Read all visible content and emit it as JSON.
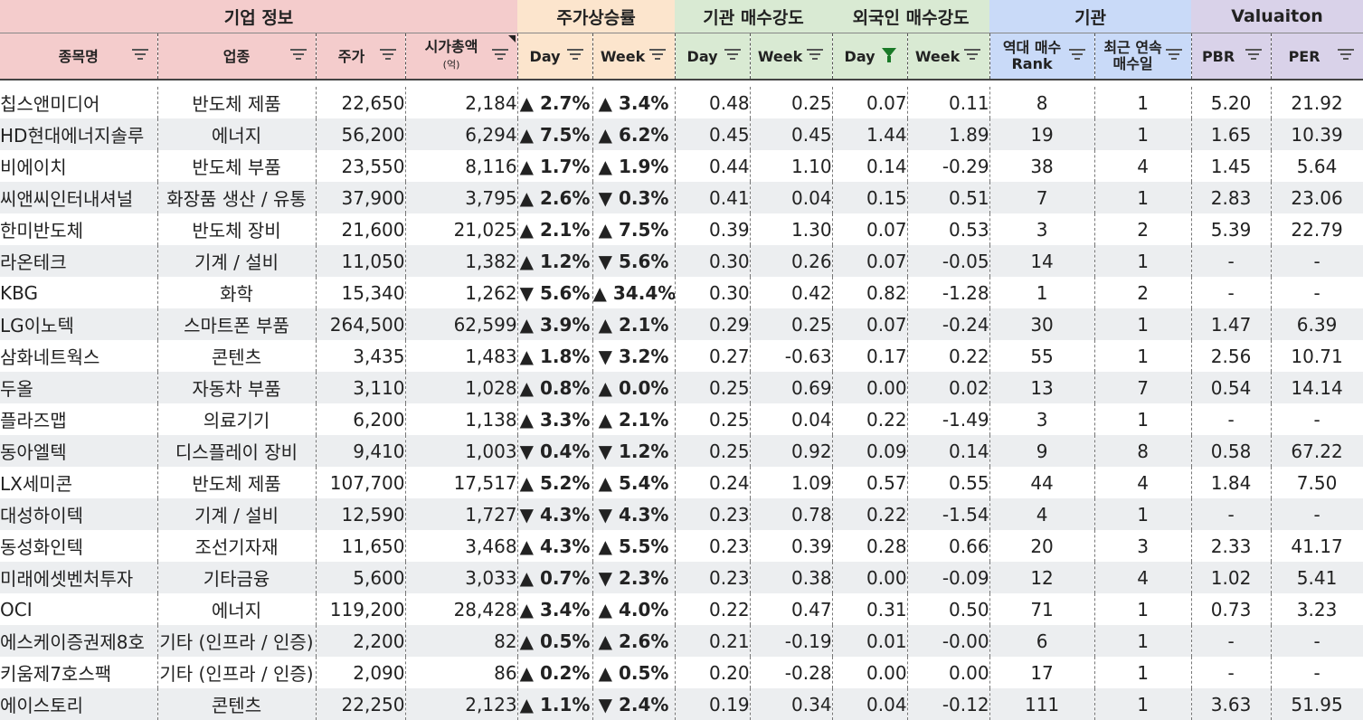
{
  "groups": [
    "기업 정보",
    "주가상승률",
    "기관 매수강도",
    "외국인 매수강도",
    "기관",
    "Valuaiton"
  ],
  "colors": {
    "pink": "#f4cccc",
    "orange": "#fce5cd",
    "green": "#d9ead3",
    "blue": "#c9daf8",
    "purple": "#d9d2e9",
    "up": "#e00000",
    "down": "#0000e0"
  },
  "headers": {
    "name": "종목명",
    "sector": "업종",
    "price": "주가",
    "mcap": "시가총액",
    "mcap_unit": "(억)",
    "p_day": "Day",
    "p_week": "Week",
    "i_day": "Day",
    "i_week": "Week",
    "f_day": "Day",
    "f_week": "Week",
    "rank_l1": "역대 매수",
    "rank_l2": "Rank",
    "streak_l1": "최근 연속",
    "streak_l2": "매수일",
    "pbr": "PBR",
    "per": "PER"
  },
  "rows": [
    {
      "name": "칩스앤미디어",
      "sector": "반도체 제품",
      "price": "22,650",
      "mcap": "2,184",
      "pd": "▲ 2.7%",
      "pdu": true,
      "pw": "▲ 3.4%",
      "pwu": true,
      "id": "0.48",
      "iw": "0.25",
      "fd": "0.07",
      "fw": "0.11",
      "rank": "8",
      "streak": "1",
      "pbr": "5.20",
      "per": "21.92"
    },
    {
      "name": "HD현대에너지솔루",
      "sector": "에너지",
      "price": "56,200",
      "mcap": "6,294",
      "pd": "▲ 7.5%",
      "pdu": true,
      "pw": "▲ 6.2%",
      "pwu": true,
      "id": "0.45",
      "iw": "0.45",
      "fd": "1.44",
      "fw": "1.89",
      "rank": "19",
      "streak": "1",
      "pbr": "1.65",
      "per": "10.39"
    },
    {
      "name": "비에이치",
      "sector": "반도체 부품",
      "price": "23,550",
      "mcap": "8,116",
      "pd": "▲ 1.7%",
      "pdu": true,
      "pw": "▲ 1.9%",
      "pwu": true,
      "id": "0.44",
      "iw": "1.10",
      "fd": "0.14",
      "fw": "-0.29",
      "rank": "38",
      "streak": "4",
      "pbr": "1.45",
      "per": "5.64"
    },
    {
      "name": "씨앤씨인터내셔널",
      "sector": "화장품 생산 / 유통",
      "price": "37,900",
      "mcap": "3,795",
      "pd": "▲ 2.6%",
      "pdu": true,
      "pw": "▼ 0.3%",
      "pwu": false,
      "id": "0.41",
      "iw": "0.04",
      "fd": "0.15",
      "fw": "0.51",
      "rank": "7",
      "streak": "1",
      "pbr": "2.83",
      "per": "23.06"
    },
    {
      "name": "한미반도체",
      "sector": "반도체 장비",
      "price": "21,600",
      "mcap": "21,025",
      "pd": "▲ 2.1%",
      "pdu": true,
      "pw": "▲ 7.5%",
      "pwu": true,
      "id": "0.39",
      "iw": "1.30",
      "fd": "0.07",
      "fw": "0.53",
      "rank": "3",
      "streak": "2",
      "pbr": "5.39",
      "per": "22.79"
    },
    {
      "name": "라온테크",
      "sector": "기계 / 설비",
      "price": "11,050",
      "mcap": "1,382",
      "pd": "▲ 1.2%",
      "pdu": true,
      "pw": "▼ 5.6%",
      "pwu": false,
      "id": "0.30",
      "iw": "0.26",
      "fd": "0.07",
      "fw": "-0.05",
      "rank": "14",
      "streak": "1",
      "pbr": "-",
      "per": "-"
    },
    {
      "name": "KBG",
      "sector": "화학",
      "price": "15,340",
      "mcap": "1,262",
      "pd": "▼ 5.6%",
      "pdu": false,
      "pw": "▲ 34.4%",
      "pwu": true,
      "id": "0.30",
      "iw": "0.42",
      "fd": "0.82",
      "fw": "-1.28",
      "rank": "1",
      "streak": "2",
      "pbr": "-",
      "per": "-"
    },
    {
      "name": "LG이노텍",
      "sector": "스마트폰 부품",
      "price": "264,500",
      "mcap": "62,599",
      "pd": "▲ 3.9%",
      "pdu": true,
      "pw": "▲ 2.1%",
      "pwu": true,
      "id": "0.29",
      "iw": "0.25",
      "fd": "0.07",
      "fw": "-0.24",
      "rank": "30",
      "streak": "1",
      "pbr": "1.47",
      "per": "6.39"
    },
    {
      "name": "삼화네트웍스",
      "sector": "콘텐츠",
      "price": "3,435",
      "mcap": "1,483",
      "pd": "▲ 1.8%",
      "pdu": true,
      "pw": "▼ 3.2%",
      "pwu": false,
      "id": "0.27",
      "iw": "-0.63",
      "fd": "0.17",
      "fw": "0.22",
      "rank": "55",
      "streak": "1",
      "pbr": "2.56",
      "per": "10.71"
    },
    {
      "name": "두올",
      "sector": "자동차 부품",
      "price": "3,110",
      "mcap": "1,028",
      "pd": "▲ 0.8%",
      "pdu": true,
      "pw": "▲ 0.0%",
      "pwu": true,
      "id": "0.25",
      "iw": "0.69",
      "fd": "0.00",
      "fw": "0.02",
      "rank": "13",
      "streak": "7",
      "pbr": "0.54",
      "per": "14.14"
    },
    {
      "name": "플라즈맵",
      "sector": "의료기기",
      "price": "6,200",
      "mcap": "1,138",
      "pd": "▲ 3.3%",
      "pdu": true,
      "pw": "▲ 2.1%",
      "pwu": true,
      "id": "0.25",
      "iw": "0.04",
      "fd": "0.22",
      "fw": "-1.49",
      "rank": "3",
      "streak": "1",
      "pbr": "-",
      "per": "-"
    },
    {
      "name": "동아엘텍",
      "sector": "디스플레이 장비",
      "price": "9,410",
      "mcap": "1,003",
      "pd": "▼ 0.4%",
      "pdu": false,
      "pw": "▼ 1.2%",
      "pwu": false,
      "id": "0.25",
      "iw": "0.92",
      "fd": "0.09",
      "fw": "0.14",
      "rank": "9",
      "streak": "8",
      "pbr": "0.58",
      "per": "67.22"
    },
    {
      "name": "LX세미콘",
      "sector": "반도체 제품",
      "price": "107,700",
      "mcap": "17,517",
      "pd": "▲ 5.2%",
      "pdu": true,
      "pw": "▲ 5.4%",
      "pwu": true,
      "id": "0.24",
      "iw": "1.09",
      "fd": "0.57",
      "fw": "0.55",
      "rank": "44",
      "streak": "4",
      "pbr": "1.84",
      "per": "7.50"
    },
    {
      "name": "대성하이텍",
      "sector": "기계 / 설비",
      "price": "12,590",
      "mcap": "1,727",
      "pd": "▼ 4.3%",
      "pdu": false,
      "pw": "▼ 4.3%",
      "pwu": false,
      "id": "0.23",
      "iw": "0.78",
      "fd": "0.22",
      "fw": "-1.54",
      "rank": "4",
      "streak": "1",
      "pbr": "-",
      "per": "-"
    },
    {
      "name": "동성화인텍",
      "sector": "조선기자재",
      "price": "11,650",
      "mcap": "3,468",
      "pd": "▲ 4.3%",
      "pdu": true,
      "pw": "▲ 5.5%",
      "pwu": true,
      "id": "0.23",
      "iw": "0.39",
      "fd": "0.28",
      "fw": "0.66",
      "rank": "20",
      "streak": "3",
      "pbr": "2.33",
      "per": "41.17"
    },
    {
      "name": "미래에셋벤처투자",
      "sector": "기타금융",
      "price": "5,600",
      "mcap": "3,033",
      "pd": "▲ 0.7%",
      "pdu": true,
      "pw": "▼ 2.3%",
      "pwu": false,
      "id": "0.23",
      "iw": "0.38",
      "fd": "0.00",
      "fw": "-0.09",
      "rank": "12",
      "streak": "4",
      "pbr": "1.02",
      "per": "5.41"
    },
    {
      "name": "OCI",
      "sector": "에너지",
      "price": "119,200",
      "mcap": "28,428",
      "pd": "▲ 3.4%",
      "pdu": true,
      "pw": "▲ 4.0%",
      "pwu": true,
      "id": "0.22",
      "iw": "0.47",
      "fd": "0.31",
      "fw": "0.50",
      "rank": "71",
      "streak": "1",
      "pbr": "0.73",
      "per": "3.23"
    },
    {
      "name": "에스케이증권제8호",
      "sector": "기타 (인프라 / 인증)",
      "price": "2,200",
      "mcap": "82",
      "pd": "▲ 0.5%",
      "pdu": true,
      "pw": "▲ 2.6%",
      "pwu": true,
      "id": "0.21",
      "iw": "-0.19",
      "fd": "0.01",
      "fw": "-0.00",
      "rank": "6",
      "streak": "1",
      "pbr": "-",
      "per": "-"
    },
    {
      "name": "키움제7호스팩",
      "sector": "기타 (인프라 / 인증)",
      "price": "2,090",
      "mcap": "86",
      "pd": "▲ 0.2%",
      "pdu": true,
      "pw": "▲ 0.5%",
      "pwu": true,
      "id": "0.20",
      "iw": "-0.28",
      "fd": "0.00",
      "fw": "0.00",
      "rank": "17",
      "streak": "1",
      "pbr": "-",
      "per": "-"
    },
    {
      "name": "에이스토리",
      "sector": "콘텐츠",
      "price": "22,250",
      "mcap": "2,123",
      "pd": "▲ 1.1%",
      "pdu": true,
      "pw": "▼ 2.4%",
      "pwu": false,
      "id": "0.19",
      "iw": "0.34",
      "fd": "0.04",
      "fw": "-0.12",
      "rank": "111",
      "streak": "1",
      "pbr": "3.63",
      "per": "51.95"
    }
  ]
}
